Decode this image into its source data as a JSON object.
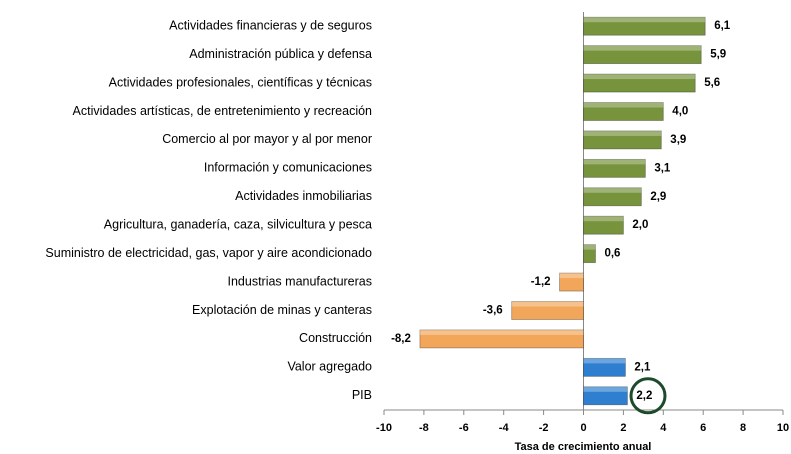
{
  "chart_data": {
    "type": "barh",
    "xlabel": "Tasa de crecimiento anual",
    "categories": [
      "Actividades financieras y de seguros",
      "Administración pública y defensa",
      "Actividades profesionales, científicas y técnicas",
      "Actividades artísticas, de entretenimiento y recreación",
      "Comercio al por mayor y al por menor",
      "Información y comunicaciones",
      "Actividades inmobiliarias",
      "Agricultura, ganadería, caza, silvicultura y pesca",
      "Suministro de electricidad, gas, vapor y aire acondicionado",
      "Industrias manufactureras",
      "Explotación de minas y canteras",
      "Construcción",
      "Valor agregado",
      "PIB"
    ],
    "values": [
      6.1,
      5.9,
      5.6,
      4.0,
      3.9,
      3.1,
      2.9,
      2.0,
      0.6,
      -1.2,
      -3.6,
      -8.2,
      2.1,
      2.2
    ],
    "value_labels": [
      "6,1",
      "5,9",
      "5,6",
      "4,0",
      "3,9",
      "3,1",
      "2,9",
      "2,0",
      "0,6",
      "-1,2",
      "-3,6",
      "-8,2",
      "2,1",
      "2,2"
    ],
    "colors": [
      "#77933c",
      "#77933c",
      "#77933c",
      "#77933c",
      "#77933c",
      "#77933c",
      "#77933c",
      "#77933c",
      "#77933c",
      "#f2a65a",
      "#f2a65a",
      "#f2a65a",
      "#2e7fd0",
      "#2e7fd0"
    ],
    "xlim": [
      -10,
      10
    ],
    "xticks": [
      -10,
      -8,
      -6,
      -4,
      -2,
      0,
      2,
      4,
      6,
      8,
      10
    ]
  }
}
